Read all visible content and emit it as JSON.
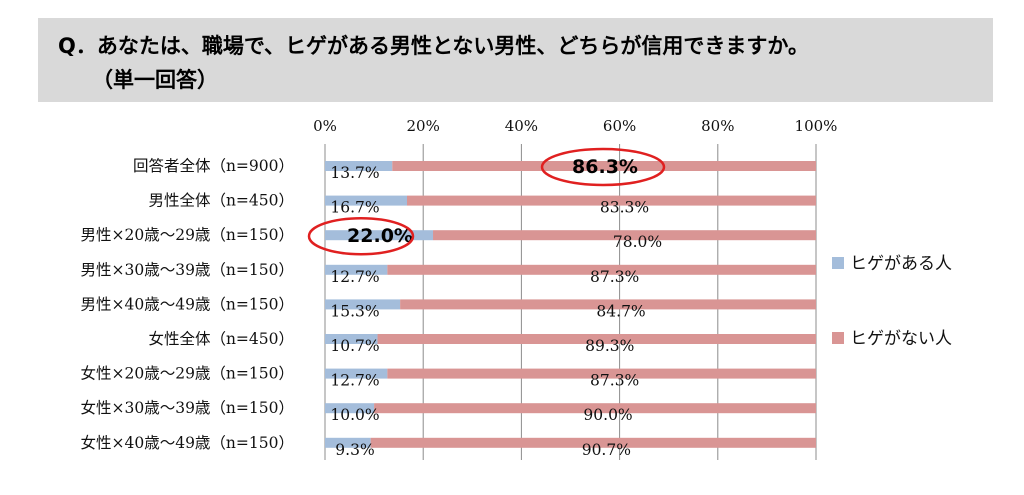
{
  "question": {
    "line1": "Q．あなたは、職場で、ヒゲがある男性とない男性、どちらが信用できますか。",
    "line2": "（単一回答）"
  },
  "chart_data": {
    "type": "bar",
    "orientation": "horizontal",
    "stacked": true,
    "categories": [
      "回答者全体（n=900）",
      "男性全体（n=450）",
      "男性×20歳～29歳（n=150）",
      "男性×30歳～39歳（n=150）",
      "男性×40歳～49歳（n=150）",
      "女性全体（n=450）",
      "女性×20歳～29歳（n=150）",
      "女性×30歳～39歳（n=150）",
      "女性×40歳～49歳（n=150）"
    ],
    "series": [
      {
        "name": "ヒゲがある人",
        "color": "#a4bddb",
        "values": [
          13.7,
          16.7,
          22.0,
          12.7,
          15.3,
          10.7,
          12.7,
          10.0,
          9.3
        ],
        "labels": [
          "13.7%",
          "16.7%",
          "22.0%",
          "12.7%",
          "15.3%",
          "10.7%",
          "12.7%",
          "10.0%",
          "9.3%"
        ]
      },
      {
        "name": "ヒゲがない人",
        "color": "#d99594",
        "values": [
          86.3,
          83.3,
          78.0,
          87.3,
          84.7,
          89.3,
          87.3,
          90.0,
          90.7
        ],
        "labels": [
          "86.3%",
          "83.3%",
          "78.0%",
          "87.3%",
          "84.7%",
          "89.3%",
          "87.3%",
          "90.0%",
          "90.7%"
        ]
      }
    ],
    "xlim": [
      0,
      100
    ],
    "xticks": [
      0,
      20,
      40,
      60,
      80,
      100
    ],
    "xtick_labels": [
      "0%",
      "20%",
      "40%",
      "60%",
      "80%",
      "100%"
    ],
    "grid": true,
    "legend_position": "right",
    "highlights": [
      {
        "category_index": 0,
        "series_index": 1
      },
      {
        "category_index": 2,
        "series_index": 0
      }
    ]
  }
}
